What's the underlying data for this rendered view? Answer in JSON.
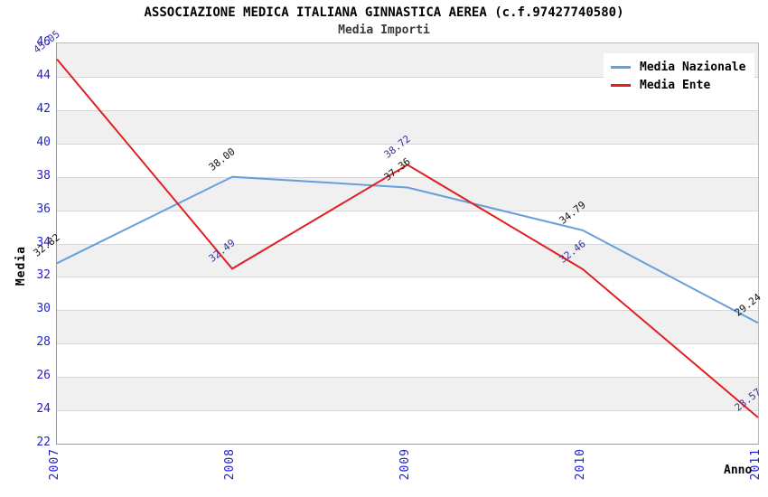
{
  "title": "ASSOCIAZIONE MEDICA ITALIANA GINNASTICA AEREA (c.f.97427740580)",
  "subtitle": "Media Importi",
  "chart_data": {
    "type": "line",
    "x": [
      "2007",
      "2008",
      "2009",
      "2010",
      "2011"
    ],
    "series": [
      {
        "name": "Media Nazionale",
        "color": "#64a0dc",
        "label_color": "#111111",
        "values": [
          32.82,
          38.0,
          37.36,
          34.79,
          29.24
        ]
      },
      {
        "name": "Media Ente",
        "color": "#e02020",
        "label_color": "#3333a0",
        "values": [
          45.05,
          32.49,
          38.72,
          32.46,
          23.57
        ]
      }
    ],
    "xlabel": "Anno",
    "ylabel": "Media",
    "ylim": [
      22,
      46
    ],
    "ytick_step": 2,
    "yticks": [
      46,
      44,
      42,
      40,
      38,
      36,
      34,
      32,
      30,
      28,
      26,
      24,
      22
    ],
    "grid": "horizontal-bands",
    "legend_position": "top-right",
    "data_label_format": "2-decimals"
  },
  "colors": {
    "band_gray": "#f0f0f0",
    "band_white": "#ffffff",
    "gridline": "#d6d6d6",
    "axis_tick_labels": "#2222cc",
    "title_text": "#000000",
    "subtitle_text": "#3a3a3a"
  }
}
